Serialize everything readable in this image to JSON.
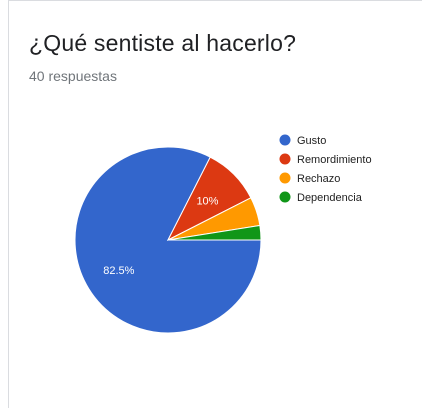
{
  "question": {
    "title": "¿Qué sentiste al hacerlo?",
    "responses": "40 respuestas"
  },
  "chart_data": {
    "type": "pie",
    "categories": [
      "Gusto",
      "Remordimiento",
      "Rechazo",
      "Dependencia"
    ],
    "values": [
      82.5,
      10,
      5,
      2.5
    ],
    "slice_labels": [
      "82.5%",
      "10%",
      "",
      ""
    ],
    "colors": [
      "#3366cc",
      "#dc3912",
      "#ff9900",
      "#109618"
    ],
    "legend_position": "right",
    "title": "",
    "xlabel": "",
    "ylabel": ""
  }
}
